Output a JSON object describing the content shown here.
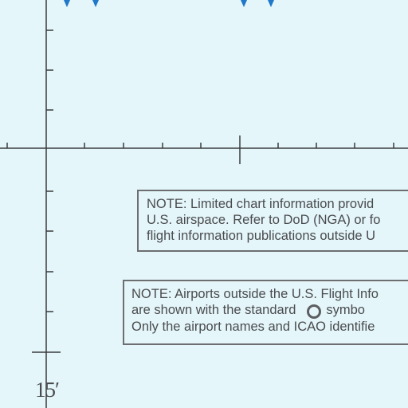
{
  "chart": {
    "grid_label": "15′",
    "colors": {
      "background": "#e4f6fa",
      "grid_line": "#3b3b3d",
      "note_border": "#6d6e71",
      "note_text": "#4a4b4e",
      "blue_lettering": "#1f78c8"
    }
  },
  "notes": {
    "limited_info": {
      "line1": "NOTE: Limited chart information provid",
      "line2": "U.S. airspace. Refer to DoD (NGA) or fo",
      "line3": "flight information publications outside U"
    },
    "airports_outside": {
      "line1": "NOTE: Airports outside the U.S. Flight Info",
      "line2a": "are shown with the standard",
      "line2b": "symbo",
      "line3": "Only the airport names and ICAO identifie",
      "symbol_icon": "airport-circle-icon"
    }
  }
}
